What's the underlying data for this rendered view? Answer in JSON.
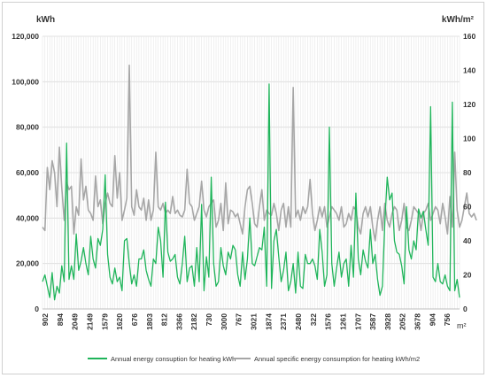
{
  "chart_data": {
    "type": "line",
    "left_unit": "kWh",
    "right_unit": "kWh/m²",
    "x_unit": "m²",
    "ylim_left": [
      0,
      120000
    ],
    "ylim_right": [
      0,
      160
    ],
    "yticks_left": [
      "0",
      "20,000",
      "40,000",
      "60,000",
      "80,000",
      "100,000",
      "120,000"
    ],
    "yticks_right": [
      "0",
      "20",
      "40",
      "60",
      "80",
      "100",
      "120",
      "140",
      "160"
    ],
    "x_tick_labels": [
      "902",
      "894",
      "2049",
      "2149",
      "1579",
      "1620",
      "676",
      "1803",
      "812",
      "3366",
      "2182",
      "730",
      "3000",
      "767",
      "3021",
      "1874",
      "2371",
      "2480",
      "322",
      "1576",
      "1261",
      "1707",
      "3587",
      "3928",
      "2052",
      "3678",
      "904",
      "756"
    ],
    "grid": true,
    "legend_position": "bottom",
    "series": [
      {
        "name": "Annual energy consuption for heating kWh",
        "axis": "left",
        "color": "#1fb45a",
        "values": [
          12000,
          15000,
          10000,
          5000,
          16000,
          4000,
          10000,
          7000,
          19000,
          12000,
          73000,
          13000,
          19000,
          13000,
          33000,
          17000,
          21000,
          27000,
          20000,
          15000,
          32000,
          22000,
          18000,
          31000,
          28000,
          35000,
          59000,
          24000,
          14000,
          11000,
          18000,
          12000,
          14000,
          8000,
          30000,
          31000,
          20000,
          11000,
          15000,
          10000,
          22000,
          22000,
          26000,
          17000,
          13000,
          10000,
          22000,
          20000,
          36000,
          30000,
          14000,
          47000,
          25000,
          21000,
          22000,
          24000,
          14000,
          11000,
          20000,
          32000,
          12000,
          18000,
          19000,
          10000,
          27000,
          12000,
          46000,
          8000,
          23000,
          14000,
          58000,
          20000,
          10000,
          12000,
          27000,
          19000,
          15000,
          25000,
          22000,
          28000,
          26000,
          15000,
          10000,
          25000,
          13000,
          22000,
          40000,
          20000,
          19000,
          23000,
          27000,
          26000,
          36000,
          10000,
          99000,
          9000,
          30000,
          35000,
          23000,
          12000,
          17000,
          25000,
          8000,
          12000,
          20000,
          7000,
          25000,
          10000,
          9000,
          24000,
          20000,
          20000,
          22000,
          19000,
          13000,
          35000,
          25000,
          10000,
          15000,
          80000,
          20000,
          10000,
          18000,
          25000,
          14000,
          20000,
          22000,
          10000,
          28000,
          14000,
          51000,
          22000,
          15000,
          26000,
          21000,
          18000,
          35000,
          20000,
          24000,
          13000,
          6000,
          10000,
          38000,
          58000,
          48000,
          51000,
          30000,
          25000,
          24000,
          19000,
          11000,
          45000,
          26000,
          22000,
          30000,
          26000,
          44000,
          40000,
          43000,
          35000,
          28000,
          89000,
          14000,
          12000,
          20000,
          12000,
          11000,
          15000,
          10000,
          8000,
          91000,
          8000,
          13000,
          5000
        ]
      },
      {
        "name": "Annual specific energy consumption for heating kWh/m2",
        "axis": "right",
        "color": "#a6a6a6",
        "values": [
          48,
          46,
          83,
          70,
          87,
          80,
          60,
          95,
          71,
          52,
          74,
          70,
          72,
          44,
          60,
          55,
          88,
          64,
          72,
          58,
          56,
          52,
          78,
          60,
          64,
          50,
          62,
          68,
          62,
          60,
          90,
          65,
          80,
          52,
          58,
          65,
          143,
          60,
          55,
          70,
          60,
          58,
          65,
          52,
          64,
          52,
          58,
          92,
          60,
          58,
          62,
          56,
          58,
          56,
          66,
          56,
          58,
          55,
          54,
          58,
          82,
          62,
          60,
          52,
          56,
          60,
          75,
          58,
          54,
          60,
          62,
          64,
          48,
          52,
          62,
          46,
          74,
          50,
          58,
          57,
          54,
          56,
          50,
          44,
          60,
          70,
          72,
          62,
          50,
          48,
          60,
          70,
          52,
          58,
          56,
          55,
          62,
          56,
          46,
          58,
          62,
          48,
          60,
          48,
          130,
          54,
          58,
          52,
          60,
          56,
          60,
          76,
          56,
          46,
          52,
          60,
          54,
          60,
          48,
          54,
          60,
          58,
          56,
          52,
          60,
          48,
          50,
          56,
          52,
          60,
          58,
          48,
          44,
          56,
          60,
          54,
          60,
          48,
          40,
          52,
          60,
          46,
          62,
          52,
          48,
          56,
          60,
          58,
          46,
          52,
          62,
          48,
          46,
          52,
          60,
          58,
          56,
          46,
          56,
          58,
          62,
          52,
          56,
          60,
          58,
          50,
          62,
          54,
          44,
          66,
          48,
          92,
          58,
          48,
          52,
          60,
          68,
          56,
          54,
          56,
          52
        ]
      }
    ]
  }
}
